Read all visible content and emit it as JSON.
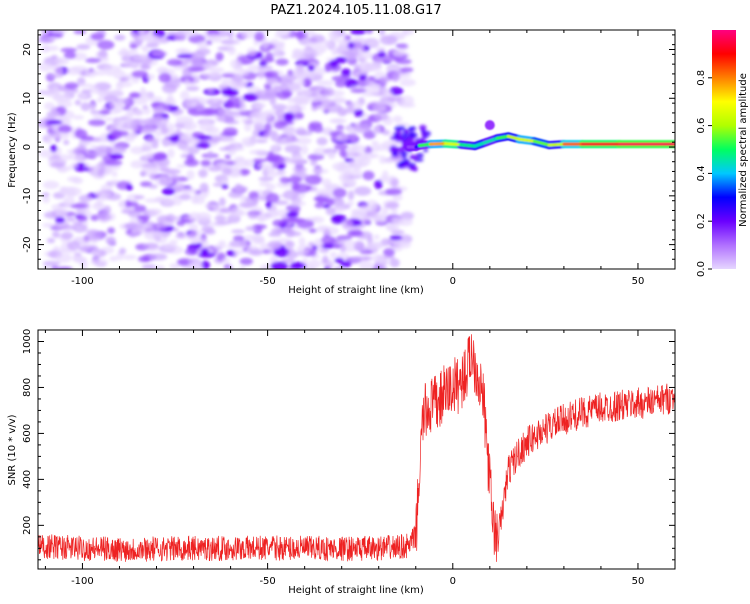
{
  "title": "PAZ1.2024.105.11.08.G17",
  "chart_data": [
    {
      "type": "heatmap",
      "xlabel": "Height of straight line (km)",
      "ylabel": "Frequency (Hz)",
      "xlim": [
        -112,
        60
      ],
      "ylim": [
        -25,
        24
      ],
      "xticks": [
        -100,
        -50,
        0,
        50
      ],
      "yticks": [
        -20,
        -10,
        0,
        10,
        20
      ],
      "colorbar": {
        "label": "Normalized spectral amplitude",
        "range": [
          0,
          1
        ],
        "ticks": [
          "0.0",
          "0.2",
          "0.4",
          "0.6",
          "0.8"
        ],
        "colors": [
          "#e6d6ff",
          "#b070ff",
          "#6a00ff",
          "#0000ff",
          "#00c8ff",
          "#00ff60",
          "#b0ff00",
          "#ffff00",
          "#ff8000",
          "#ff0000",
          "#ff0080"
        ]
      },
      "noise_region": {
        "x": [
          -110,
          -12
        ],
        "freq": [
          -25,
          24
        ],
        "amplitude": [
          0.0,
          0.15
        ]
      },
      "signal_track": [
        {
          "x": -12,
          "freq": 0.0,
          "amp": 0.1
        },
        {
          "x": -10,
          "freq": 0.0,
          "amp": 0.18
        },
        {
          "x": -9,
          "freq": 0.3,
          "amp": 0.35
        },
        {
          "x": -6,
          "freq": 0.6,
          "amp": 0.7
        },
        {
          "x": -2,
          "freq": 0.7,
          "amp": 0.85
        },
        {
          "x": 2,
          "freq": 0.5,
          "amp": 0.45
        },
        {
          "x": 6,
          "freq": 0.2,
          "amp": 0.5
        },
        {
          "x": 9,
          "freq": 1.0,
          "amp": 0.4
        },
        {
          "x": 12,
          "freq": 1.8,
          "amp": 0.5
        },
        {
          "x": 15,
          "freq": 2.2,
          "amp": 0.55
        },
        {
          "x": 18,
          "freq": 1.6,
          "amp": 0.7
        },
        {
          "x": 22,
          "freq": 1.2,
          "amp": 0.6
        },
        {
          "x": 26,
          "freq": 0.4,
          "amp": 0.5
        },
        {
          "x": 30,
          "freq": 0.6,
          "amp": 0.75
        },
        {
          "x": 35,
          "freq": 0.6,
          "amp": 0.9
        },
        {
          "x": 45,
          "freq": 0.6,
          "amp": 0.95
        },
        {
          "x": 60,
          "freq": 0.6,
          "amp": 0.97
        }
      ]
    },
    {
      "type": "line",
      "xlabel": "Height of straight line (km)",
      "ylabel": "SNR (10 * v/v)",
      "xlim": [
        -112,
        60
      ],
      "ylim": [
        10,
        1050
      ],
      "xticks": [
        -100,
        -50,
        0,
        50
      ],
      "yticks": [
        200,
        400,
        600,
        800,
        1000
      ],
      "color": "#ee2222",
      "series": [
        {
          "x": [
            -112,
            -100,
            -90,
            -80,
            -70,
            -60,
            -50,
            -40,
            -30,
            -20,
            -15,
            -12,
            -10,
            -9,
            -8,
            -6,
            -4,
            -2,
            0,
            2,
            4,
            5,
            6,
            8,
            9,
            10,
            11,
            12,
            13,
            15,
            18,
            20,
            25,
            30,
            35,
            40,
            45,
            50,
            55,
            60
          ],
          "y": [
            110,
            100,
            95,
            98,
            100,
            100,
            102,
            100,
            98,
            100,
            105,
            110,
            150,
            430,
            680,
            720,
            730,
            780,
            800,
            820,
            880,
            960,
            900,
            780,
            600,
            380,
            200,
            130,
            220,
            440,
            520,
            560,
            620,
            660,
            690,
            710,
            720,
            730,
            740,
            760
          ]
        }
      ]
    }
  ]
}
